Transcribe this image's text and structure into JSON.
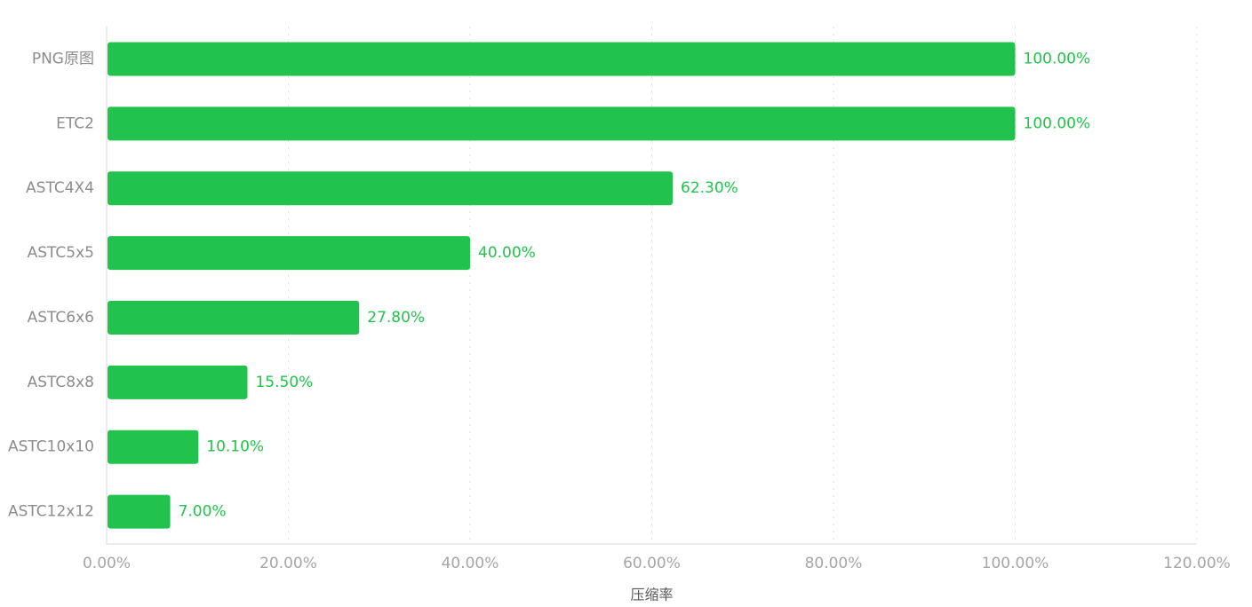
{
  "chart_data": {
    "type": "bar",
    "orientation": "horizontal",
    "categories": [
      "PNG原图",
      "ETC2",
      "ASTC4X4",
      "ASTC5x5",
      "ASTC6x6",
      "ASTC8x8",
      "ASTC10x10",
      "ASTC12x12"
    ],
    "values": [
      100.0,
      100.0,
      62.3,
      40.0,
      27.8,
      15.5,
      10.1,
      7.0
    ],
    "value_labels": [
      "100.00%",
      "100.00%",
      "62.30%",
      "40.00%",
      "27.80%",
      "15.50%",
      "10.10%",
      "7.00%"
    ],
    "xlabel": "压缩率",
    "xlim": [
      0,
      120
    ],
    "xticks": [
      0,
      20,
      40,
      60,
      80,
      100,
      120
    ],
    "xtick_labels": [
      "0.00%",
      "20.00%",
      "40.00%",
      "60.00%",
      "80.00%",
      "100.00%",
      "120.00%"
    ],
    "grid": true,
    "colors": {
      "bar": "#22c34c",
      "label": "#22c34c",
      "grid": "#dedede",
      "axis": "#d9d9d9"
    }
  }
}
